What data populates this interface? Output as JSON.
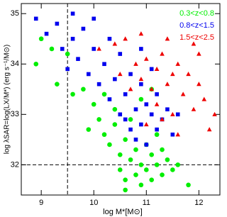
{
  "chart_data": {
    "type": "scatter",
    "xlabel": "log M*[M⊙]",
    "ylabel": "log λSAR=log(LX/M*) (erg s⁻¹/M⊙)",
    "xlim": [
      8.62,
      12.4
    ],
    "ylim": [
      31.4,
      35.2
    ],
    "xticks": [
      9,
      10,
      11,
      12
    ],
    "yticks": [
      32,
      33,
      34,
      35
    ],
    "vlines": [
      9.5
    ],
    "hlines": [
      32
    ],
    "legend": "upper right",
    "series": [
      {
        "name": "0.3<z<0.8",
        "color": "#00ee00",
        "marker": "circle",
        "x": [
          9.0,
          9.2,
          9.3,
          8.9,
          9.5,
          9.6,
          9.8,
          10.0,
          10.1,
          10.2,
          10.3,
          10.4,
          10.5,
          10.5,
          10.6,
          10.6,
          10.7,
          10.7,
          10.8,
          10.8,
          10.9,
          10.9,
          11.0,
          11.0,
          11.1,
          11.1,
          11.2,
          11.2,
          11.3,
          11.3,
          11.4,
          11.5,
          11.6,
          11.8,
          10.4,
          10.9,
          11.1,
          9.9,
          10.2,
          10.6
        ],
        "values": [
          34.5,
          34.3,
          33.6,
          34.0,
          34.2,
          33.4,
          33.5,
          33.2,
          32.9,
          32.6,
          32.4,
          32.8,
          32.2,
          31.9,
          32.5,
          31.7,
          32.1,
          32.9,
          31.8,
          32.3,
          32.0,
          31.6,
          32.4,
          31.9,
          32.2,
          31.7,
          32.0,
          32.6,
          31.8,
          32.3,
          32.1,
          31.9,
          32.0,
          31.6,
          33.1,
          33.3,
          33.5,
          32.7,
          33.4,
          31.5
        ]
      },
      {
        "name": "0.8<z<1.5",
        "color": "#0000ee",
        "marker": "square",
        "x": [
          8.9,
          9.1,
          9.3,
          9.4,
          9.6,
          9.7,
          9.8,
          9.9,
          10.0,
          10.1,
          10.2,
          10.3,
          10.4,
          10.5,
          10.5,
          10.6,
          10.7,
          10.7,
          10.8,
          10.8,
          10.9,
          10.9,
          11.0,
          11.0,
          11.1,
          11.1,
          11.2,
          11.2,
          11.3,
          11.4,
          11.5,
          10.0,
          9.6,
          10.3,
          11.6,
          10.6,
          9.5,
          10.9
        ],
        "values": [
          34.9,
          34.6,
          34.8,
          34.3,
          34.5,
          34.1,
          34.7,
          33.8,
          34.3,
          33.6,
          34.0,
          33.3,
          33.7,
          33.0,
          34.2,
          33.4,
          32.7,
          33.8,
          33.1,
          32.5,
          33.6,
          32.8,
          33.2,
          32.4,
          33.0,
          33.9,
          32.7,
          33.4,
          32.9,
          33.1,
          32.6,
          34.9,
          35.0,
          34.5,
          33.0,
          32.9,
          33.9,
          34.3
        ]
      },
      {
        "name": "1.5<z<2.5",
        "color": "#ee0000",
        "marker": "triangle",
        "x": [
          10.1,
          10.4,
          10.6,
          10.8,
          10.9,
          11.0,
          11.1,
          11.2,
          11.2,
          11.3,
          11.4,
          11.5,
          11.5,
          11.6,
          11.7,
          11.8,
          11.9,
          12.0,
          12.1,
          12.2,
          12.3,
          11.0,
          11.3,
          11.6,
          11.9,
          10.7,
          10.5,
          12.0,
          11.4,
          10.9
        ],
        "values": [
          34.3,
          34.4,
          34.5,
          34.0,
          33.7,
          34.1,
          33.5,
          33.9,
          33.2,
          34.2,
          33.6,
          33.0,
          33.8,
          34.0,
          33.4,
          33.8,
          33.1,
          33.6,
          33.3,
          32.7,
          33.0,
          32.8,
          32.9,
          32.6,
          34.4,
          33.5,
          33.8,
          34.2,
          34.5,
          34.6
        ]
      }
    ]
  }
}
